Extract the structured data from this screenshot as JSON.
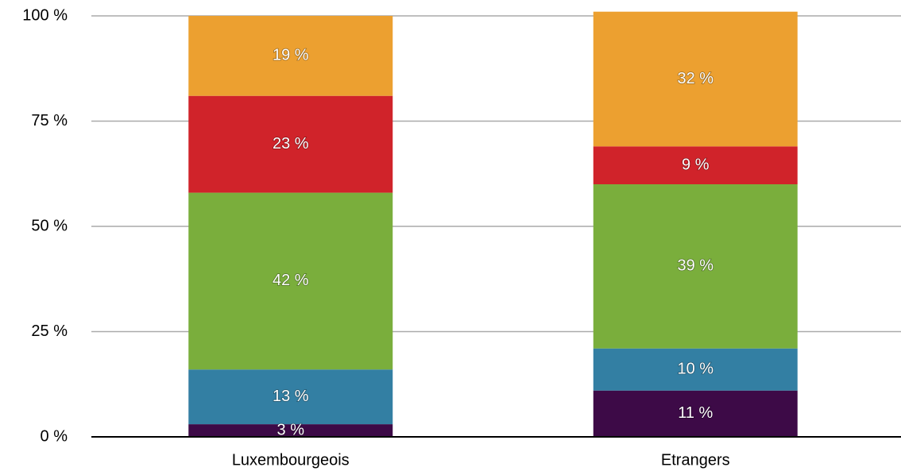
{
  "chart_data": {
    "type": "stacked_bar",
    "categories": [
      "Luxembourgeois",
      "Etrangers"
    ],
    "series": [
      {
        "color": "#3d0a47",
        "values": [
          3,
          11
        ],
        "value_labels": [
          "3 %",
          "11 %"
        ]
      },
      {
        "color": "#337fa3",
        "values": [
          13,
          10
        ],
        "value_labels": [
          "13 %",
          "10 %"
        ]
      },
      {
        "color": "#7aae3c",
        "values": [
          42,
          39
        ],
        "value_labels": [
          "42 %",
          "39 %"
        ]
      },
      {
        "color": "#d0232a",
        "values": [
          23,
          9
        ],
        "value_labels": [
          "23 %",
          "9 %"
        ]
      },
      {
        "color": "#eca030",
        "values": [
          19,
          32
        ],
        "value_labels": [
          "19 %",
          "32 %"
        ]
      }
    ],
    "ylim": [
      0,
      100
    ],
    "yticks": [
      {
        "value": 0,
        "label": "0 %"
      },
      {
        "value": 25,
        "label": "25 %"
      },
      {
        "value": 50,
        "label": "50 %"
      },
      {
        "value": 75,
        "label": "75 %"
      },
      {
        "value": 100,
        "label": "100 %"
      }
    ],
    "grid": true
  }
}
